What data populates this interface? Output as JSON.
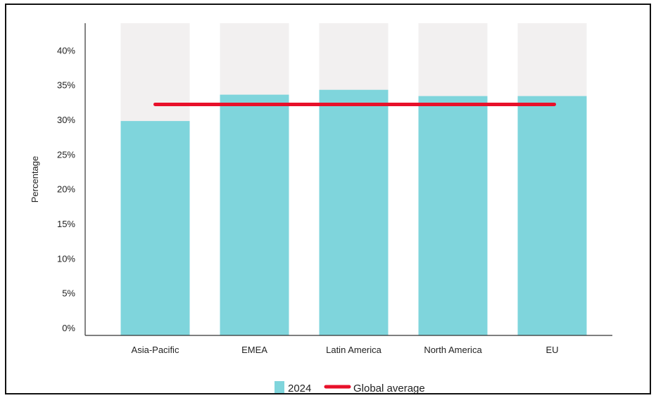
{
  "chart_data": {
    "type": "bar",
    "categories": [
      "Asia-Pacific",
      "EMEA",
      "Latin America",
      "North America",
      "EU"
    ],
    "series": [
      {
        "name": "2024",
        "values": [
          30.9,
          34.7,
          35.4,
          34.5,
          34.5
        ],
        "color": "#7fd5dc"
      }
    ],
    "global_average": {
      "name": "Global average",
      "value": 33.3,
      "color": "#e8102a"
    },
    "background_bar_value": 45,
    "background_bar_color": "#f2f0f0",
    "title": "",
    "xlabel": "",
    "ylabel": "Percentage",
    "ylim": [
      0,
      45
    ],
    "yticks": [
      0,
      5,
      10,
      15,
      20,
      25,
      30,
      35,
      40
    ],
    "ytick_labels": [
      "0%",
      "5%",
      "10%",
      "15%",
      "20%",
      "25%",
      "30%",
      "35%",
      "40%"
    ],
    "grid": false,
    "legend_position": "bottom-center"
  }
}
